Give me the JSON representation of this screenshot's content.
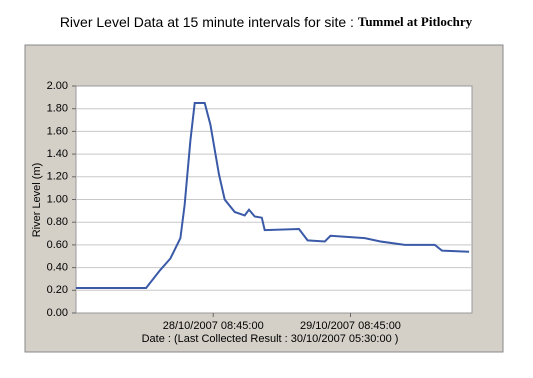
{
  "chart_data": {
    "type": "line",
    "title": "River Level Data at 15 minute intervals for site : ",
    "site": "Tummel at Pitlochry",
    "y_label": "River Level (m)",
    "x_label": "Date : (Last Collected Result : 30/10/2007 05:30:00 )",
    "x": [
      "27/10/2007 08:45:00",
      "27/10/2007 21:00:00",
      "27/10/2007 23:30:00",
      "28/10/2007 01:15:00",
      "28/10/2007 03:00:00",
      "28/10/2007 03:45:00",
      "28/10/2007 04:45:00",
      "28/10/2007 05:30:00",
      "28/10/2007 07:15:00",
      "28/10/2007 08:15:00",
      "28/10/2007 09:45:00",
      "28/10/2007 10:45:00",
      "28/10/2007 12:30:00",
      "28/10/2007 14:15:00",
      "28/10/2007 15:00:00",
      "28/10/2007 16:00:00",
      "28/10/2007 17:15:00",
      "28/10/2007 17:45:00",
      "28/10/2007 23:45:00",
      "29/10/2007 01:15:00",
      "29/10/2007 04:15:00",
      "29/10/2007 05:15:00",
      "29/10/2007 11:15:00",
      "29/10/2007 14:00:00",
      "29/10/2007 18:15:00",
      "29/10/2007 23:30:00",
      "30/10/2007 00:45:00",
      "30/10/2007 05:30:00"
    ],
    "series": [
      {
        "name": "River Level",
        "color": "#3a5aa8",
        "values": [
          0.22,
          0.22,
          0.38,
          0.48,
          0.66,
          0.95,
          1.52,
          1.85,
          1.85,
          1.66,
          1.22,
          1.0,
          0.89,
          0.86,
          0.91,
          0.85,
          0.84,
          0.73,
          0.74,
          0.64,
          0.63,
          0.68,
          0.66,
          0.63,
          0.6,
          0.6,
          0.55,
          0.54
        ]
      }
    ],
    "xlim": [
      "27/10/2007 08:45:00",
      "30/10/2007 06:00:00"
    ],
    "xticks": [
      "28/10/2007 08:45:00",
      "29/10/2007 08:45:00"
    ],
    "ylim": [
      0,
      2
    ],
    "yticks": [
      {
        "value": 0,
        "label": "0.00"
      },
      {
        "value": 0.2,
        "label": "0.20"
      },
      {
        "value": 0.4,
        "label": "0.40"
      },
      {
        "value": 0.6,
        "label": "0.60"
      },
      {
        "value": 0.8,
        "label": "0.80"
      },
      {
        "value": 1,
        "label": "1.00"
      },
      {
        "value": 1.2,
        "label": "1.20"
      },
      {
        "value": 1.4,
        "label": "1.40"
      },
      {
        "value": 1.6,
        "label": "1.60"
      },
      {
        "value": 1.8,
        "label": "1.80"
      },
      {
        "value": 2,
        "label": "2.00"
      }
    ],
    "grid": true
  }
}
